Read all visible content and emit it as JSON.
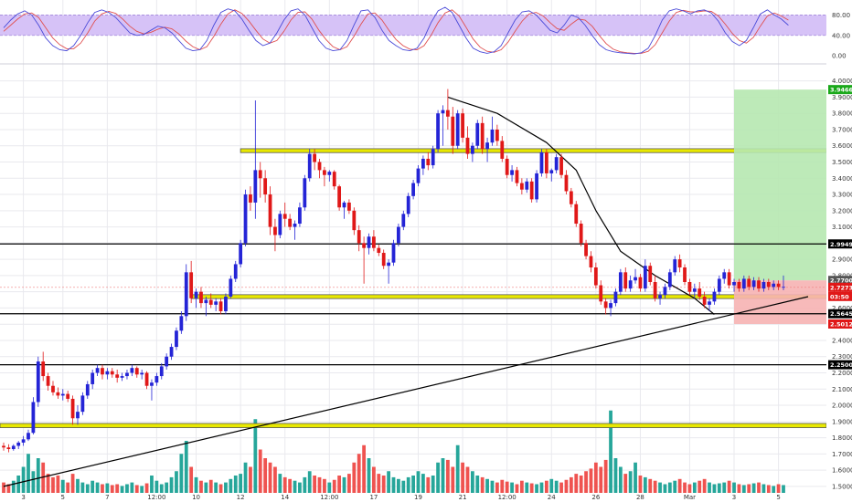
{
  "chart_data": {
    "type": "candlestick",
    "colors": {
      "up": "#2424d6",
      "down": "#e01818",
      "vol_up": "#26a69a",
      "vol_down": "#ef5350",
      "oscillator_band": "#d6c2f7",
      "zone": "#e8e800",
      "target_zone": "#b6e8b0",
      "stop_zone": "#f6b3b3",
      "grid": "#e9e9ee"
    },
    "price_axis": {
      "ylim": [
        1.46,
        4.06
      ],
      "ticks": [
        "4.0000",
        "3.9000",
        "3.8000",
        "3.7000",
        "3.6000",
        "3.5000",
        "3.4000",
        "3.3000",
        "3.2000",
        "3.1000",
        "3.0000",
        "2.9000",
        "2.8000",
        "2.7000",
        "2.6000",
        "2.5000",
        "2.4000",
        "2.3000",
        "2.2000",
        "2.1000",
        "2.0000",
        "1.9000",
        "1.8000",
        "1.7000",
        "1.6000",
        "1.5000"
      ]
    },
    "oscillator_axis": {
      "ylim": [
        -5,
        95
      ],
      "ticks": [
        "80.00",
        "40.00",
        "0.00"
      ],
      "band": [
        40,
        80
      ],
      "k": [
        55,
        70,
        82,
        88,
        80,
        60,
        35,
        20,
        12,
        10,
        20,
        40,
        65,
        85,
        90,
        85,
        75,
        60,
        45,
        40,
        42,
        50,
        58,
        55,
        45,
        30,
        15,
        10,
        12,
        30,
        60,
        85,
        92,
        88,
        72,
        50,
        30,
        20,
        25,
        45,
        70,
        88,
        92,
        80,
        55,
        30,
        15,
        10,
        12,
        30,
        60,
        88,
        90,
        75,
        50,
        30,
        20,
        12,
        10,
        15,
        35,
        65,
        88,
        95,
        85,
        60,
        35,
        15,
        8,
        5,
        8,
        20,
        45,
        70,
        86,
        88,
        80,
        65,
        50,
        45,
        60,
        80,
        75,
        60,
        40,
        22,
        12,
        8,
        6,
        5,
        4,
        6,
        15,
        40,
        70,
        88,
        92,
        88,
        82,
        88,
        90,
        84,
        68,
        45,
        28,
        20,
        30,
        55,
        82,
        90,
        80,
        72,
        60
      ],
      "d": [
        48,
        60,
        72,
        82,
        84,
        75,
        55,
        35,
        22,
        14,
        14,
        25,
        45,
        68,
        82,
        87,
        83,
        72,
        58,
        48,
        43,
        46,
        52,
        56,
        53,
        43,
        29,
        18,
        12,
        18,
        38,
        62,
        82,
        90,
        83,
        68,
        50,
        33,
        25,
        30,
        48,
        70,
        85,
        86,
        72,
        50,
        32,
        18,
        12,
        18,
        38,
        62,
        82,
        84,
        70,
        50,
        32,
        20,
        13,
        12,
        20,
        40,
        65,
        84,
        90,
        78,
        56,
        33,
        17,
        9,
        7,
        12,
        27,
        48,
        68,
        82,
        85,
        78,
        65,
        53,
        50,
        62,
        72,
        70,
        58,
        40,
        24,
        13,
        8,
        6,
        5,
        5,
        9,
        22,
        45,
        68,
        85,
        89,
        86,
        86,
        88,
        87,
        78,
        62,
        44,
        30,
        25,
        36,
        58,
        78,
        84,
        78,
        70
      ]
    },
    "x_tick_labels": [
      "3",
      "5",
      "7",
      "12:00",
      "10",
      "12",
      "14",
      "12:00",
      "17",
      "19",
      "21",
      "12:00",
      "24",
      "26",
      "28",
      "Mar",
      "3",
      "5"
    ],
    "x_tick_index": [
      4,
      12,
      21,
      31,
      39,
      48,
      57,
      66,
      75,
      84,
      93,
      102,
      111,
      120,
      129,
      139,
      148,
      157
    ],
    "candle_count": 160,
    "future_index_max": 163,
    "candles": [
      [
        1.75,
        1.77,
        1.72,
        1.74
      ],
      [
        1.74,
        1.76,
        1.71,
        1.73
      ],
      [
        1.73,
        1.76,
        1.72,
        1.75
      ],
      [
        1.75,
        1.78,
        1.73,
        1.77
      ],
      [
        1.77,
        1.81,
        1.75,
        1.79
      ],
      [
        1.79,
        1.85,
        1.78,
        1.83
      ],
      [
        1.83,
        2.05,
        1.82,
        2.02
      ],
      [
        2.02,
        2.3,
        1.99,
        2.27
      ],
      [
        2.27,
        2.33,
        2.15,
        2.18
      ],
      [
        2.18,
        2.2,
        2.09,
        2.12
      ],
      [
        2.12,
        2.15,
        2.06,
        2.08
      ],
      [
        2.08,
        2.11,
        2.04,
        2.06
      ],
      [
        2.06,
        2.1,
        2.03,
        2.07
      ],
      [
        2.07,
        2.09,
        2.02,
        2.04
      ],
      [
        2.04,
        2.06,
        1.88,
        1.92
      ],
      [
        1.92,
        2.0,
        1.88,
        1.96
      ],
      [
        1.96,
        2.08,
        1.94,
        2.06
      ],
      [
        2.06,
        2.15,
        2.04,
        2.13
      ],
      [
        2.13,
        2.22,
        2.1,
        2.2
      ],
      [
        2.2,
        2.25,
        2.18,
        2.23
      ],
      [
        2.23,
        2.25,
        2.16,
        2.19
      ],
      [
        2.19,
        2.23,
        2.16,
        2.21
      ],
      [
        2.21,
        2.23,
        2.17,
        2.19
      ],
      [
        2.19,
        2.22,
        2.14,
        2.17
      ],
      [
        2.17,
        2.2,
        2.15,
        2.18
      ],
      [
        2.18,
        2.22,
        2.16,
        2.2
      ],
      [
        2.2,
        2.25,
        2.18,
        2.23
      ],
      [
        2.23,
        2.24,
        2.17,
        2.19
      ],
      [
        2.19,
        2.22,
        2.16,
        2.2
      ],
      [
        2.2,
        2.21,
        2.1,
        2.12
      ],
      [
        2.12,
        2.16,
        2.03,
        2.14
      ],
      [
        2.14,
        2.2,
        2.12,
        2.18
      ],
      [
        2.18,
        2.26,
        2.16,
        2.24
      ],
      [
        2.24,
        2.32,
        2.22,
        2.3
      ],
      [
        2.3,
        2.38,
        2.28,
        2.36
      ],
      [
        2.36,
        2.48,
        2.34,
        2.46
      ],
      [
        2.46,
        2.58,
        2.44,
        2.55
      ],
      [
        2.55,
        2.87,
        2.52,
        2.82
      ],
      [
        2.82,
        2.89,
        2.63,
        2.66
      ],
      [
        2.66,
        2.72,
        2.6,
        2.7
      ],
      [
        2.7,
        2.73,
        2.6,
        2.63
      ],
      [
        2.63,
        2.67,
        2.55,
        2.65
      ],
      [
        2.65,
        2.69,
        2.6,
        2.62
      ],
      [
        2.62,
        2.66,
        2.58,
        2.64
      ],
      [
        2.64,
        2.66,
        2.56,
        2.58
      ],
      [
        2.58,
        2.69,
        2.56,
        2.67
      ],
      [
        2.67,
        2.8,
        2.66,
        2.78
      ],
      [
        2.78,
        2.89,
        2.76,
        2.87
      ],
      [
        2.87,
        3.02,
        2.85,
        3.0
      ],
      [
        3.0,
        3.33,
        2.98,
        3.3
      ],
      [
        3.3,
        3.35,
        3.2,
        3.25
      ],
      [
        3.25,
        3.88,
        3.15,
        3.45
      ],
      [
        3.45,
        3.5,
        3.28,
        3.4
      ],
      [
        3.4,
        3.45,
        3.25,
        3.3
      ],
      [
        3.3,
        3.35,
        3.05,
        3.1
      ],
      [
        3.1,
        3.15,
        2.95,
        3.05
      ],
      [
        3.05,
        3.2,
        3.03,
        3.18
      ],
      [
        3.18,
        3.25,
        3.1,
        3.15
      ],
      [
        3.15,
        3.18,
        3.08,
        3.1
      ],
      [
        3.1,
        3.14,
        3.02,
        3.12
      ],
      [
        3.12,
        3.25,
        3.1,
        3.22
      ],
      [
        3.22,
        3.42,
        3.2,
        3.4
      ],
      [
        3.4,
        3.58,
        3.38,
        3.55
      ],
      [
        3.55,
        3.58,
        3.45,
        3.5
      ],
      [
        3.5,
        3.52,
        3.4,
        3.45
      ],
      [
        3.45,
        3.47,
        3.35,
        3.42
      ],
      [
        3.42,
        3.45,
        3.38,
        3.44
      ],
      [
        3.44,
        3.45,
        3.33,
        3.35
      ],
      [
        3.35,
        3.36,
        3.2,
        3.22
      ],
      [
        3.22,
        3.26,
        3.15,
        3.25
      ],
      [
        3.25,
        3.27,
        3.18,
        3.2
      ],
      [
        3.2,
        3.22,
        3.05,
        3.08
      ],
      [
        3.08,
        3.11,
        2.95,
        3.0
      ],
      [
        3.0,
        3.04,
        2.75,
        2.97
      ],
      [
        2.97,
        3.06,
        2.93,
        3.04
      ],
      [
        3.04,
        3.08,
        2.95,
        2.97
      ],
      [
        2.97,
        2.99,
        2.92,
        2.94
      ],
      [
        2.94,
        2.96,
        2.84,
        2.86
      ],
      [
        2.86,
        2.9,
        2.75,
        2.88
      ],
      [
        2.88,
        3.02,
        2.86,
        3.0
      ],
      [
        3.0,
        3.12,
        2.98,
        3.1
      ],
      [
        3.1,
        3.2,
        3.08,
        3.18
      ],
      [
        3.18,
        3.31,
        3.16,
        3.29
      ],
      [
        3.29,
        3.39,
        3.27,
        3.37
      ],
      [
        3.37,
        3.48,
        3.35,
        3.46
      ],
      [
        3.46,
        3.54,
        3.42,
        3.52
      ],
      [
        3.52,
        3.56,
        3.45,
        3.48
      ],
      [
        3.48,
        3.6,
        3.46,
        3.58
      ],
      [
        3.58,
        3.82,
        3.56,
        3.8
      ],
      [
        3.8,
        3.85,
        3.6,
        3.82
      ],
      [
        3.82,
        3.95,
        3.7,
        3.78
      ],
      [
        3.78,
        3.84,
        3.55,
        3.6
      ],
      [
        3.6,
        3.82,
        3.58,
        3.8
      ],
      [
        3.8,
        3.83,
        3.62,
        3.65
      ],
      [
        3.65,
        3.72,
        3.52,
        3.55
      ],
      [
        3.55,
        3.62,
        3.5,
        3.6
      ],
      [
        3.6,
        3.76,
        3.58,
        3.74
      ],
      [
        3.74,
        3.78,
        3.55,
        3.58
      ],
      [
        3.58,
        3.65,
        3.5,
        3.62
      ],
      [
        3.62,
        3.78,
        3.6,
        3.7
      ],
      [
        3.7,
        3.73,
        3.6,
        3.63
      ],
      [
        3.63,
        3.66,
        3.5,
        3.52
      ],
      [
        3.52,
        3.54,
        3.4,
        3.42
      ],
      [
        3.42,
        3.48,
        3.38,
        3.45
      ],
      [
        3.45,
        3.47,
        3.35,
        3.37
      ],
      [
        3.37,
        3.4,
        3.3,
        3.33
      ],
      [
        3.33,
        3.4,
        3.31,
        3.38
      ],
      [
        3.38,
        3.4,
        3.25,
        3.27
      ],
      [
        3.27,
        3.45,
        3.25,
        3.43
      ],
      [
        3.43,
        3.58,
        3.41,
        3.56
      ],
      [
        3.56,
        3.58,
        3.4,
        3.43
      ],
      [
        3.43,
        3.46,
        3.38,
        3.45
      ],
      [
        3.45,
        3.55,
        3.43,
        3.53
      ],
      [
        3.53,
        3.55,
        3.4,
        3.42
      ],
      [
        3.42,
        3.45,
        3.3,
        3.32
      ],
      [
        3.32,
        3.34,
        3.22,
        3.24
      ],
      [
        3.24,
        3.26,
        3.1,
        3.12
      ],
      [
        3.12,
        3.14,
        2.98,
        3.0
      ],
      [
        3.0,
        3.02,
        2.9,
        2.92
      ],
      [
        2.92,
        2.95,
        2.82,
        2.85
      ],
      [
        2.85,
        2.88,
        2.72,
        2.74
      ],
      [
        2.74,
        2.77,
        2.62,
        2.64
      ],
      [
        2.64,
        2.66,
        2.56,
        2.6
      ],
      [
        2.6,
        2.65,
        2.55,
        2.63
      ],
      [
        2.63,
        2.72,
        2.61,
        2.7
      ],
      [
        2.7,
        2.84,
        2.68,
        2.82
      ],
      [
        2.82,
        2.85,
        2.7,
        2.72
      ],
      [
        2.72,
        2.8,
        2.7,
        2.77
      ],
      [
        2.77,
        2.84,
        2.75,
        2.79
      ],
      [
        2.79,
        2.81,
        2.7,
        2.72
      ],
      [
        2.72,
        2.9,
        2.7,
        2.86
      ],
      [
        2.86,
        2.88,
        2.74,
        2.76
      ],
      [
        2.76,
        2.8,
        2.64,
        2.66
      ],
      [
        2.66,
        2.7,
        2.62,
        2.68
      ],
      [
        2.68,
        2.75,
        2.66,
        2.73
      ],
      [
        2.73,
        2.84,
        2.71,
        2.82
      ],
      [
        2.82,
        2.92,
        2.8,
        2.9
      ],
      [
        2.9,
        2.93,
        2.82,
        2.85
      ],
      [
        2.85,
        2.87,
        2.74,
        2.76
      ],
      [
        2.76,
        2.78,
        2.68,
        2.7
      ],
      [
        2.7,
        2.75,
        2.66,
        2.72
      ],
      [
        2.72,
        2.76,
        2.65,
        2.67
      ],
      [
        2.67,
        2.7,
        2.6,
        2.62
      ],
      [
        2.62,
        2.66,
        2.58,
        2.64
      ],
      [
        2.64,
        2.72,
        2.62,
        2.7
      ],
      [
        2.7,
        2.8,
        2.68,
        2.78
      ],
      [
        2.78,
        2.84,
        2.75,
        2.82
      ],
      [
        2.82,
        2.84,
        2.72,
        2.74
      ],
      [
        2.74,
        2.78,
        2.7,
        2.76
      ],
      [
        2.76,
        2.78,
        2.7,
        2.72
      ],
      [
        2.72,
        2.8,
        2.7,
        2.78
      ],
      [
        2.78,
        2.8,
        2.71,
        2.73
      ],
      [
        2.73,
        2.79,
        2.71,
        2.77
      ],
      [
        2.77,
        2.79,
        2.7,
        2.72
      ],
      [
        2.72,
        2.78,
        2.7,
        2.76
      ],
      [
        2.76,
        2.78,
        2.71,
        2.73
      ],
      [
        2.73,
        2.77,
        2.71,
        2.75
      ],
      [
        2.75,
        2.77,
        2.71,
        2.73
      ],
      [
        2.73,
        2.8,
        2.71,
        2.73
      ]
    ],
    "volume": [
      0.12,
      0.1,
      0.14,
      0.2,
      0.3,
      0.45,
      0.25,
      0.4,
      0.35,
      0.22,
      0.18,
      0.2,
      0.15,
      0.12,
      0.22,
      0.16,
      0.12,
      0.1,
      0.14,
      0.12,
      0.1,
      0.11,
      0.09,
      0.1,
      0.08,
      0.1,
      0.12,
      0.09,
      0.08,
      0.11,
      0.2,
      0.14,
      0.1,
      0.12,
      0.18,
      0.25,
      0.45,
      0.6,
      0.3,
      0.18,
      0.14,
      0.12,
      0.15,
      0.12,
      0.1,
      0.12,
      0.16,
      0.2,
      0.22,
      0.35,
      0.3,
      0.85,
      0.5,
      0.4,
      0.35,
      0.3,
      0.22,
      0.18,
      0.16,
      0.14,
      0.12,
      0.18,
      0.25,
      0.2,
      0.18,
      0.16,
      0.12,
      0.15,
      0.2,
      0.18,
      0.22,
      0.35,
      0.45,
      0.55,
      0.4,
      0.3,
      0.22,
      0.2,
      0.25,
      0.18,
      0.16,
      0.14,
      0.18,
      0.2,
      0.25,
      0.22,
      0.18,
      0.2,
      0.35,
      0.4,
      0.38,
      0.3,
      0.55,
      0.35,
      0.3,
      0.25,
      0.2,
      0.18,
      0.16,
      0.14,
      0.12,
      0.15,
      0.13,
      0.12,
      0.1,
      0.14,
      0.12,
      0.11,
      0.1,
      0.12,
      0.14,
      0.16,
      0.14,
      0.12,
      0.15,
      0.18,
      0.22,
      0.2,
      0.25,
      0.28,
      0.35,
      0.3,
      0.38,
      0.95,
      0.4,
      0.3,
      0.22,
      0.25,
      0.35,
      0.2,
      0.18,
      0.16,
      0.14,
      0.12,
      0.1,
      0.12,
      0.14,
      0.16,
      0.12,
      0.1,
      0.12,
      0.14,
      0.16,
      0.12,
      0.1,
      0.11,
      0.12,
      0.14,
      0.12,
      0.1,
      0.09,
      0.1,
      0.11,
      0.12,
      0.1,
      0.09,
      0.08,
      0.1,
      0.09,
      0.11
    ],
    "zones": [
      {
        "low": 3.558,
        "high": 3.582
      },
      {
        "low": 2.658,
        "high": 2.682
      },
      {
        "low": 1.862,
        "high": 1.888
      }
    ],
    "levels": [
      2.9949,
      2.5645,
      2.25
    ],
    "levels_label": [
      "2.9949",
      "2.5645",
      "2.2500"
    ],
    "long_position": {
      "entry": 2.77,
      "target": 3.9466,
      "stop": 2.5012,
      "start_index": 148
    },
    "current_price": 2.7273,
    "price_tags": {
      "target": "3.9466",
      "level_upper": "2.9949",
      "entry": "2.7700",
      "current": "2.7273",
      "countdown": "03:50",
      "level_lower": "2.5645",
      "stop": "2.5012",
      "level_bottom": "2.2500"
    },
    "trendlines": [
      {
        "from": [
          0,
          1.5
        ],
        "to": [
          163,
          2.67
        ]
      }
    ],
    "curve": [
      [
        90,
        3.9
      ],
      [
        100,
        3.8
      ],
      [
        110,
        3.62
      ],
      [
        116,
        3.45
      ],
      [
        120,
        3.2
      ],
      [
        125,
        2.95
      ],
      [
        132,
        2.8
      ],
      [
        140,
        2.66
      ],
      [
        144,
        2.56
      ]
    ]
  }
}
